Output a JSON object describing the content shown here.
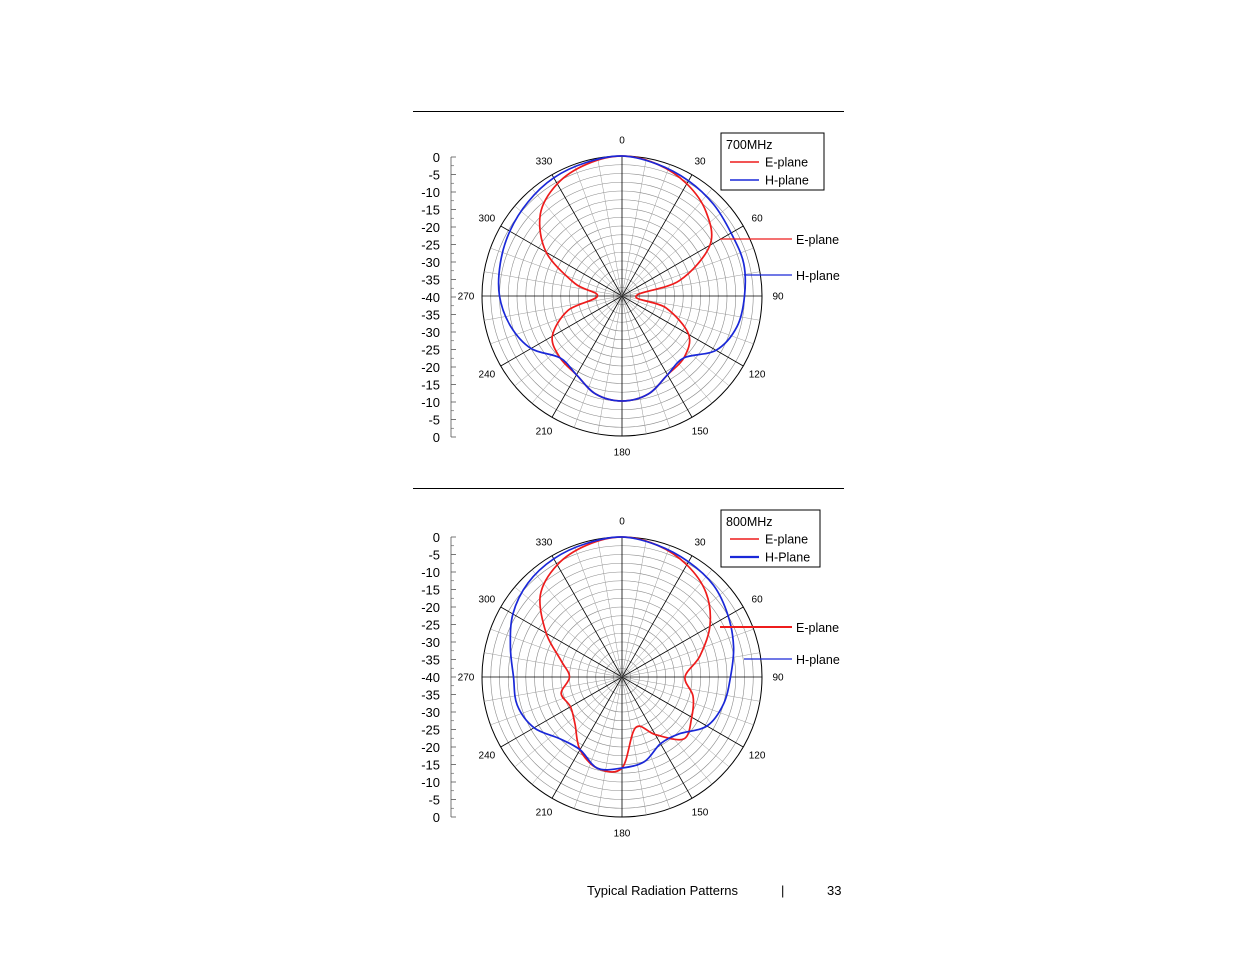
{
  "page": {
    "footer_title": "Typical Radiation Patterns",
    "footer_separator": "|",
    "page_number": "33"
  },
  "chart_data": [
    {
      "type": "polar-line",
      "title": "700MHz",
      "angle_unit": "degrees",
      "radial_unit": "dB",
      "radial_range": [
        -40,
        0
      ],
      "radial_tick_labels": [
        "0",
        "-5",
        "-10",
        "-15",
        "-20",
        "-25",
        "-30",
        "-35",
        "-40",
        "-35",
        "-30",
        "-25",
        "-20",
        "-15",
        "-10",
        "-5",
        "0"
      ],
      "angle_tick_labels": [
        "0",
        "30",
        "60",
        "90",
        "120",
        "150",
        "180",
        "210",
        "240",
        "270",
        "300",
        "330"
      ],
      "angles": [
        0,
        15,
        30,
        45,
        60,
        75,
        90,
        105,
        120,
        135,
        150,
        165,
        180,
        195,
        210,
        225,
        240,
        255,
        270,
        285,
        300,
        315,
        330,
        345
      ],
      "series": [
        {
          "name": "E-plane",
          "color": "#ee1c1c",
          "values": [
            0,
            -1,
            -3,
            -6,
            -11,
            -23,
            -36,
            -27,
            -18,
            -15,
            -14,
            -11,
            -10,
            -11,
            -14,
            -15,
            -17,
            -24,
            -33,
            -26,
            -15,
            -7,
            -3,
            -1
          ]
        },
        {
          "name": "H-plane",
          "color": "#1a28d8",
          "values": [
            0,
            -1,
            -2,
            -3,
            -4,
            -4,
            -5,
            -6,
            -9,
            -15,
            -14,
            -11,
            -10,
            -11,
            -14,
            -15,
            -10,
            -7,
            -5,
            -4,
            -3,
            -2,
            -1,
            -0.5
          ]
        }
      ],
      "legend": {
        "title": "700MHz",
        "entries": [
          "E-plane",
          "H-plane"
        ],
        "position": "top-right"
      },
      "annotations": [
        {
          "text": "E-plane",
          "series": "E-plane"
        },
        {
          "text": "H-plane",
          "series": "H-plane"
        }
      ]
    },
    {
      "type": "polar-line",
      "title": "800MHz",
      "angle_unit": "degrees",
      "radial_unit": "dB",
      "radial_range": [
        -40,
        0
      ],
      "radial_tick_labels": [
        "0",
        "-5",
        "-10",
        "-15",
        "-20",
        "-25",
        "-30",
        "-35",
        "-40",
        "-35",
        "-30",
        "-25",
        "-20",
        "-15",
        "-10",
        "-5",
        "0"
      ],
      "angle_tick_labels": [
        "0",
        "30",
        "60",
        "90",
        "120",
        "150",
        "180",
        "210",
        "240",
        "270",
        "300",
        "330"
      ],
      "angles": [
        0,
        15,
        30,
        45,
        60,
        75,
        90,
        105,
        120,
        135,
        150,
        165,
        180,
        195,
        210,
        225,
        240,
        255,
        270,
        285,
        300,
        315,
        330,
        345
      ],
      "series": [
        {
          "name": "E-plane",
          "color": "#ee1c1c",
          "values": [
            0,
            -1,
            -3,
            -6,
            -11,
            -17,
            -22,
            -19,
            -17,
            -15,
            -21,
            -25,
            -14,
            -13,
            -16,
            -21,
            -23,
            -22,
            -25,
            -22,
            -15,
            -7,
            -3,
            -1
          ]
        },
        {
          "name": "H-plane",
          "color": "#1a28d8",
          "values": [
            0,
            -1,
            -2,
            -3,
            -5,
            -7,
            -9,
            -10,
            -12,
            -17,
            -18,
            -15,
            -14,
            -13,
            -16,
            -15,
            -11,
            -9,
            -9,
            -7,
            -4,
            -2,
            -1,
            -0.5
          ]
        }
      ],
      "legend": {
        "title": "800MHz",
        "entries": [
          "E-plane",
          "H-Plane"
        ],
        "position": "top-right"
      },
      "annotations": [
        {
          "text": "E-plane",
          "series": "E-plane"
        },
        {
          "text": "H-plane",
          "series": "H-plane"
        }
      ]
    }
  ]
}
